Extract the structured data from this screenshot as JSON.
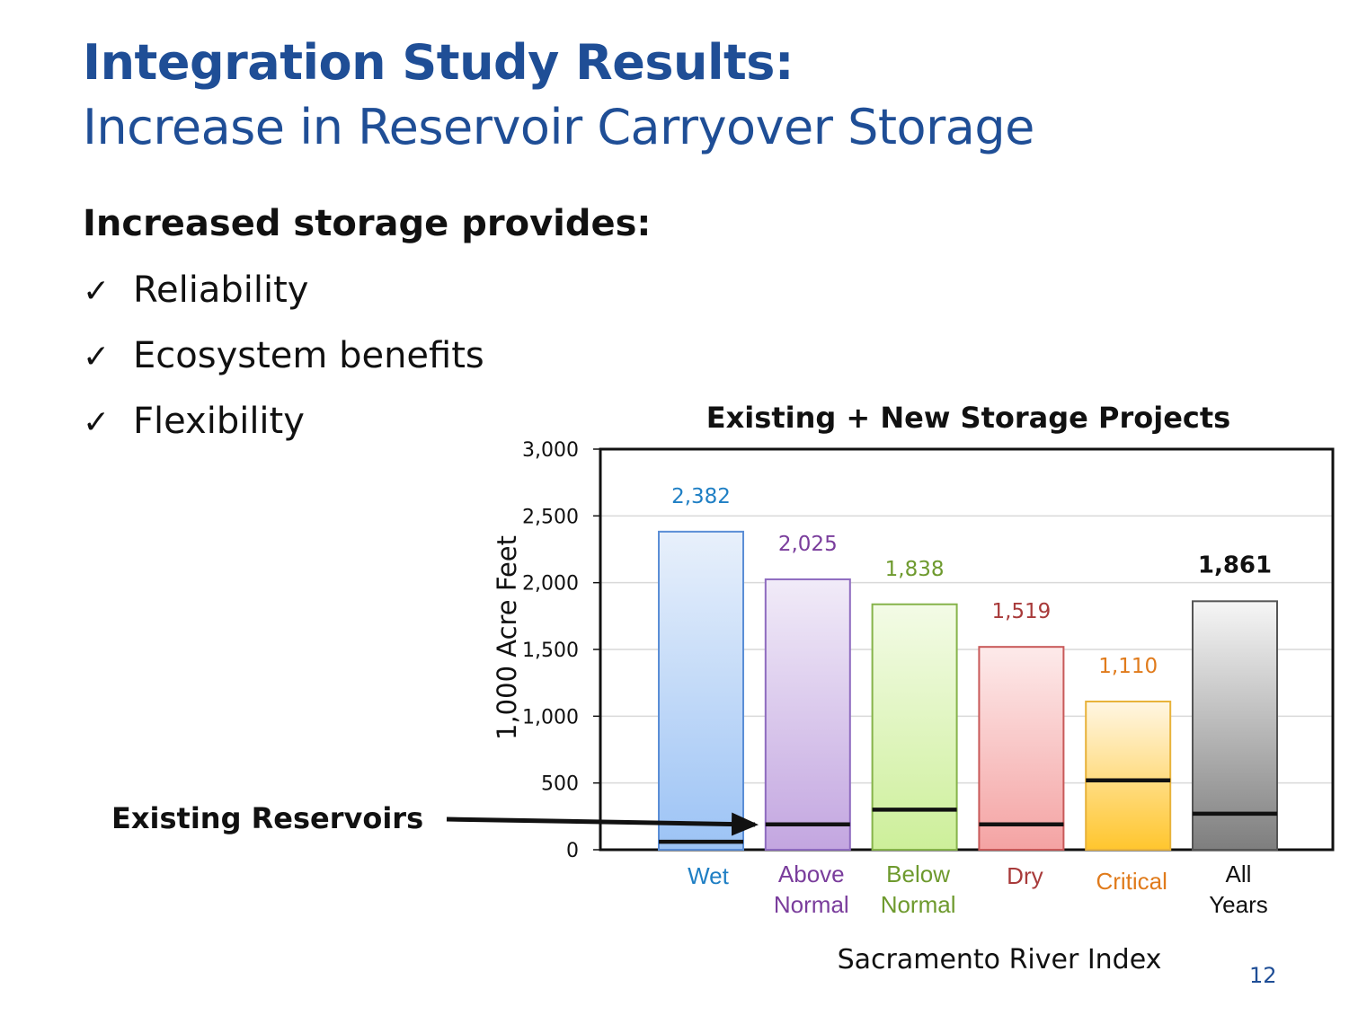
{
  "slide": {
    "title": "Integration Study Results:",
    "subtitle": "Increase in Reservoir Carryover Storage",
    "intro": "Increased storage provides:",
    "check_glyph": "✓",
    "bullets": [
      "Reliability",
      "Ecosystem benefits",
      "Flexibility"
    ],
    "existing_label": "Existing Reservoirs",
    "page_number": "12"
  },
  "chart_data": {
    "type": "bar",
    "title": "Existing + New Storage Projects",
    "xlabel": "Sacramento River Index",
    "ylabel": "1,000 Acre Feet",
    "ylim": [
      0,
      3000
    ],
    "yticks": [
      0,
      500,
      1000,
      1500,
      2000,
      2500,
      3000
    ],
    "ytick_labels": [
      "0",
      "500",
      "1,000",
      "1,500",
      "2,000",
      "2,500",
      "3,000"
    ],
    "grid": true,
    "categories": [
      {
        "lines": [
          "Wet"
        ],
        "color": "#1f7fc4"
      },
      {
        "lines": [
          "Above",
          "Normal"
        ],
        "color": "#7a3d9c"
      },
      {
        "lines": [
          "Below",
          "Normal"
        ],
        "color": "#6e9a2e"
      },
      {
        "lines": [
          "Dry"
        ],
        "color": "#a83a3a"
      },
      {
        "lines": [
          "Critical"
        ],
        "color": "#e07b1c"
      },
      {
        "lines": [
          "All",
          "Years"
        ],
        "color": "#111111"
      }
    ],
    "values": [
      2382,
      2025,
      1838,
      1519,
      1110,
      1861
    ],
    "value_labels": [
      "2,382",
      "2,025",
      "1,838",
      "1,519",
      "1,110",
      "1,861"
    ],
    "existing_reservoirs": [
      60,
      190,
      300,
      190,
      520,
      270
    ],
    "bar_colors": [
      {
        "top": "#e8f0fb",
        "bottom": "#9cc3f5",
        "stroke": "#5b8ed6",
        "label": "#1f7fc4"
      },
      {
        "top": "#f1ebf8",
        "bottom": "#c3a6e0",
        "stroke": "#8e6bbf",
        "label": "#7a3d9c"
      },
      {
        "top": "#f3fbe6",
        "bottom": "#cdef9a",
        "stroke": "#86b34a",
        "label": "#6e9a2e"
      },
      {
        "top": "#fdeaea",
        "bottom": "#f4a3a3",
        "stroke": "#c85a5a",
        "label": "#a83a3a"
      },
      {
        "top": "#fff6e3",
        "bottom": "#ffc62e",
        "stroke": "#e8b23a",
        "label": "#e07b1c"
      },
      {
        "top": "#f6f6f6",
        "bottom": "#7e7e7e",
        "stroke": "#555555",
        "label": "#111111"
      }
    ]
  }
}
